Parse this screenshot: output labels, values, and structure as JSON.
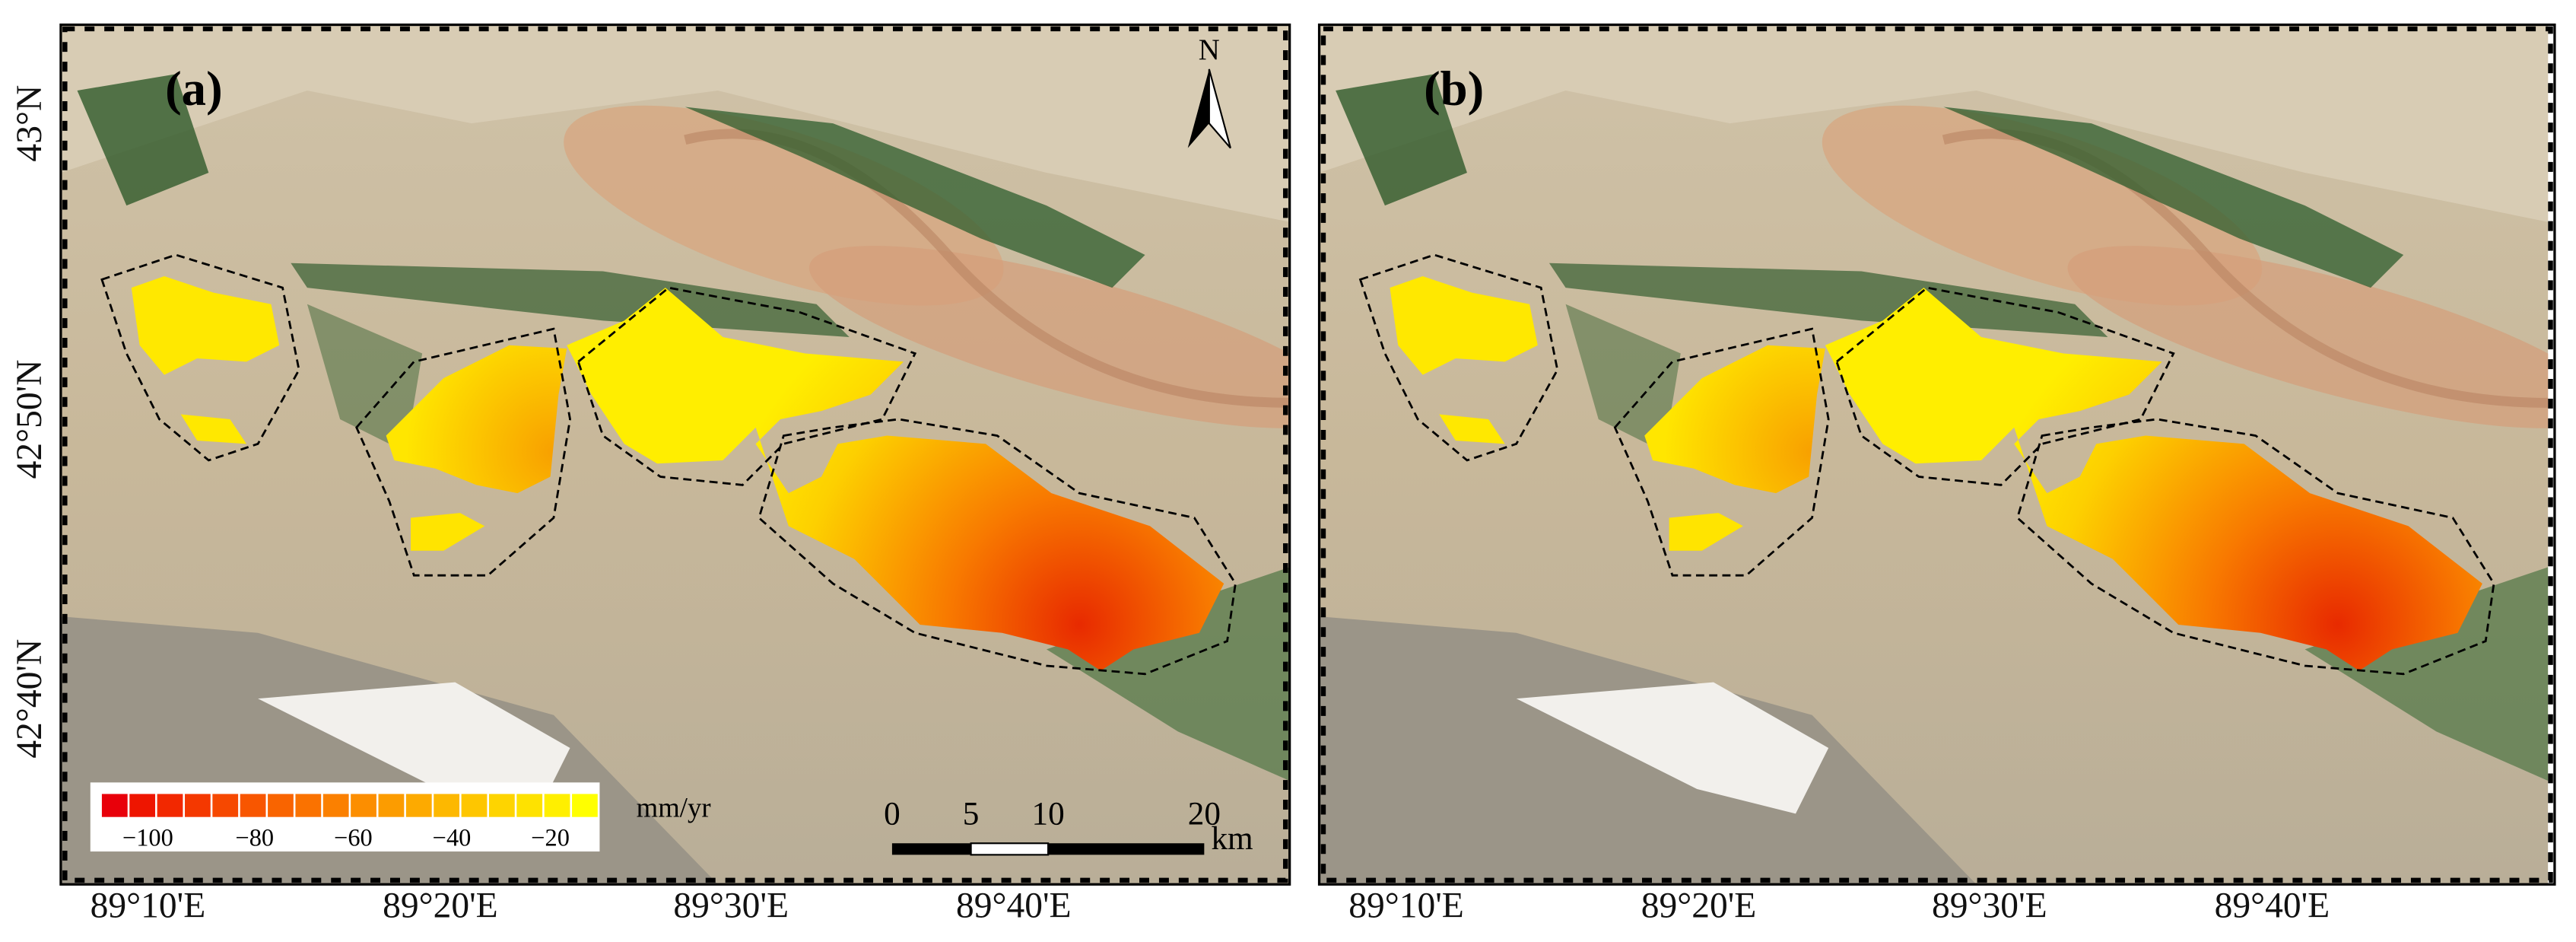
{
  "panels": [
    {
      "label": "(a)"
    },
    {
      "label": "(b)"
    }
  ],
  "north": "N",
  "latitude_labels": [
    "43°N",
    "42°50'N",
    "42°40'N"
  ],
  "longitude_labels": [
    "89°10'E",
    "89°20'E",
    "89°30'E",
    "89°40'E"
  ],
  "colorbar": {
    "ticks": [
      "−100",
      "−80",
      "−60",
      "−40",
      "−20"
    ],
    "unit": "mm/yr",
    "colors": [
      "#e8000a",
      "#ee1500",
      "#f22800",
      "#f43800",
      "#f64800",
      "#f85600",
      "#f96400",
      "#fa7200",
      "#fb8000",
      "#fc8e00",
      "#fc9c00",
      "#fdaa00",
      "#fdb800",
      "#fec600",
      "#fed400",
      "#fee200",
      "#ffef00",
      "#ffff00"
    ]
  },
  "scale_bar": {
    "labels": [
      "0",
      "5",
      "10",
      "20"
    ],
    "unit": "km"
  }
}
